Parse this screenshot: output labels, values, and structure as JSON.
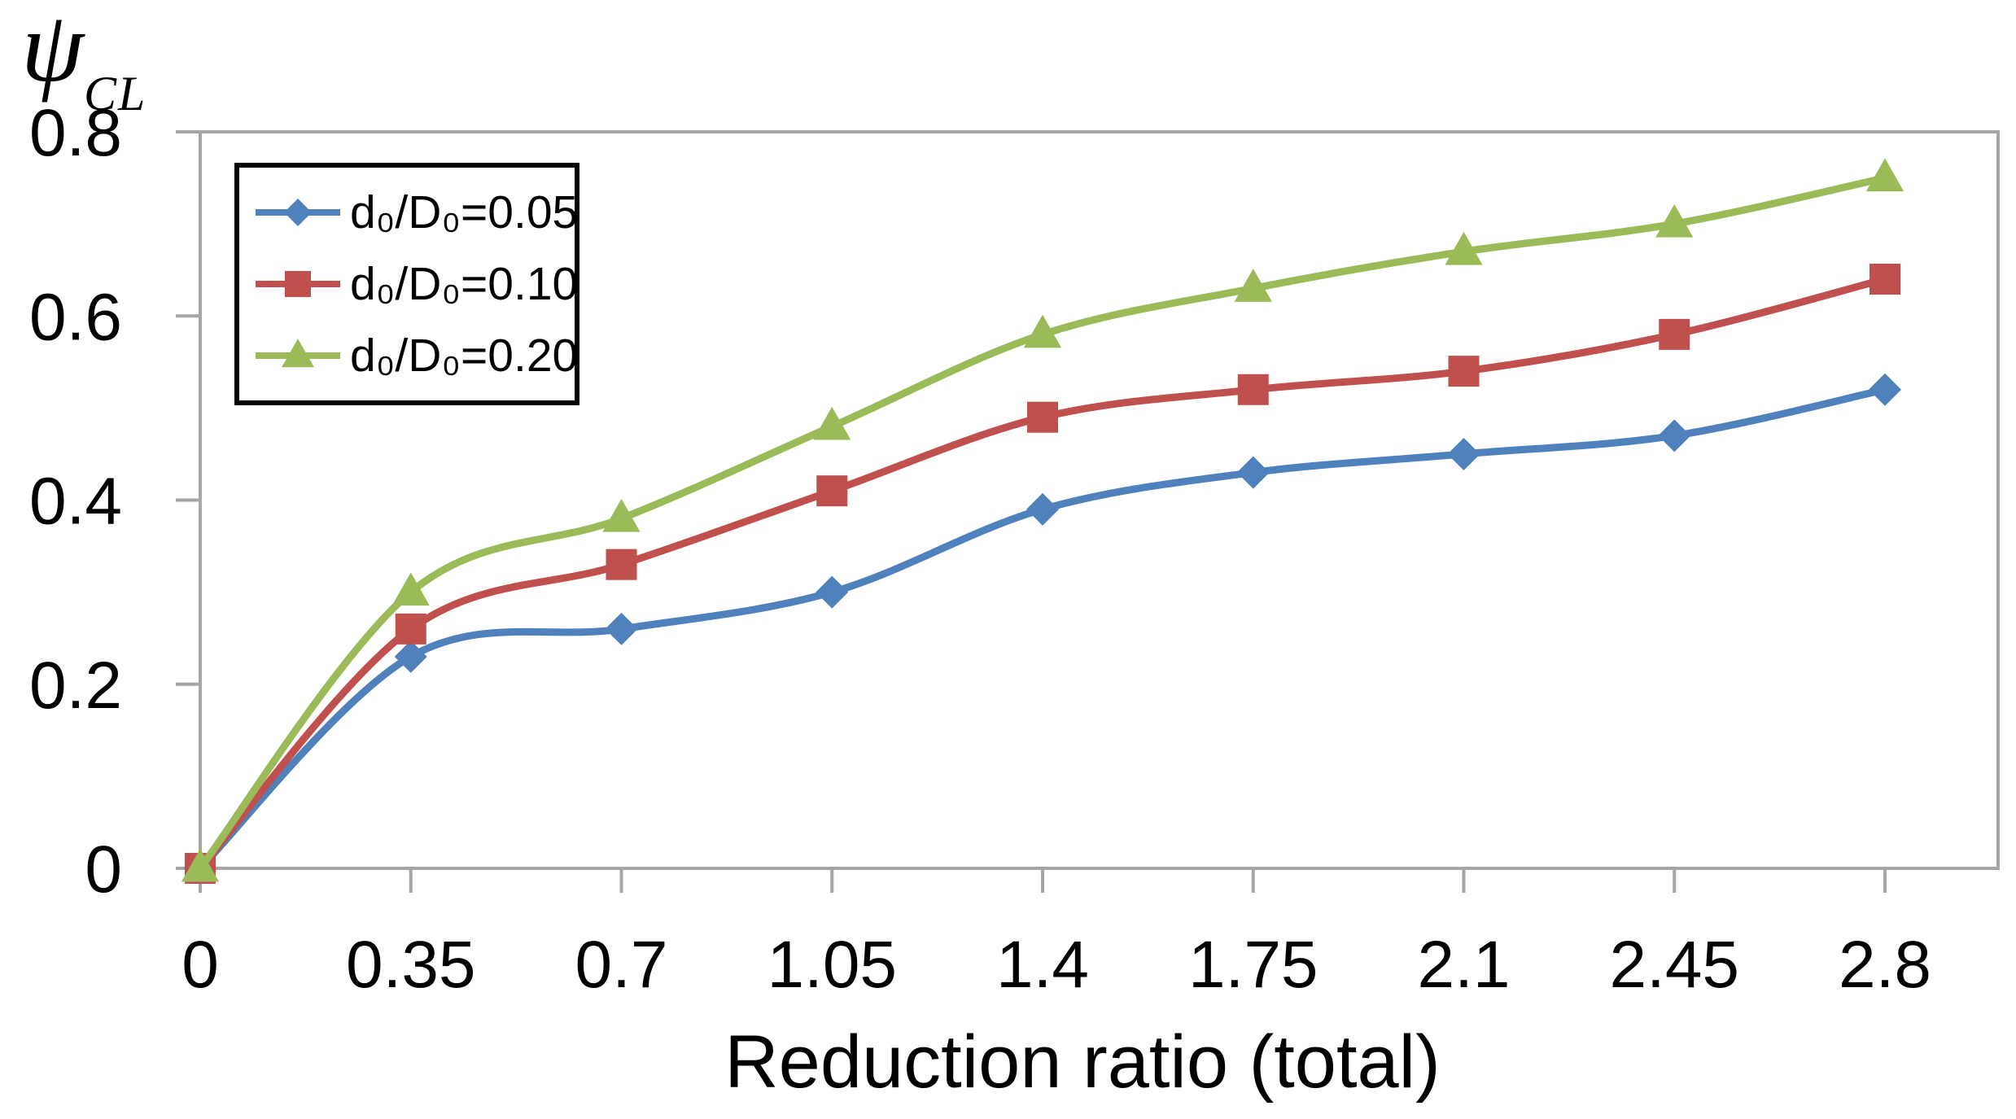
{
  "chart_data": {
    "type": "line",
    "title": "",
    "x_axis": {
      "label": "Reduction ratio (total)",
      "ticks": [
        0,
        0.35,
        0.7,
        1.05,
        1.4,
        1.75,
        2.1,
        2.45,
        2.8
      ],
      "tick_labels": [
        "0",
        "0.35",
        "0.7",
        "1.05",
        "1.4",
        "1.75",
        "2.1",
        "2.45",
        "2.8"
      ],
      "range": [
        0,
        2.8
      ]
    },
    "y_axis": {
      "label_symbol": "ψ",
      "label_subscript": "CL",
      "ticks": [
        0,
        0.2,
        0.4,
        0.6,
        0.8
      ],
      "tick_labels": [
        "0",
        "0.2",
        "0.4",
        "0.6",
        "0.8"
      ],
      "range": [
        0,
        0.8
      ]
    },
    "x": [
      0,
      0.35,
      0.7,
      1.05,
      1.4,
      1.75,
      2.1,
      2.45,
      2.8
    ],
    "series": [
      {
        "name": "d₀/D₀=0.05",
        "color": "#4F81BD",
        "marker": "diamond",
        "values": [
          0,
          0.23,
          0.26,
          0.3,
          0.39,
          0.43,
          0.45,
          0.47,
          0.52
        ]
      },
      {
        "name": "d₀/D₀=0.10",
        "color": "#C0504D",
        "marker": "square",
        "values": [
          0,
          0.26,
          0.33,
          0.41,
          0.49,
          0.52,
          0.54,
          0.58,
          0.64
        ]
      },
      {
        "name": "d₀/D₀=0.20",
        "color": "#9BBB59",
        "marker": "triangle",
        "values": [
          0,
          0.3,
          0.38,
          0.48,
          0.58,
          0.63,
          0.67,
          0.7,
          0.75
        ]
      }
    ],
    "legend": {
      "position": "top-left",
      "border_color": "#000000"
    },
    "grid": false,
    "axis_color": "#A6A6A6",
    "smoothed_lines": true
  }
}
